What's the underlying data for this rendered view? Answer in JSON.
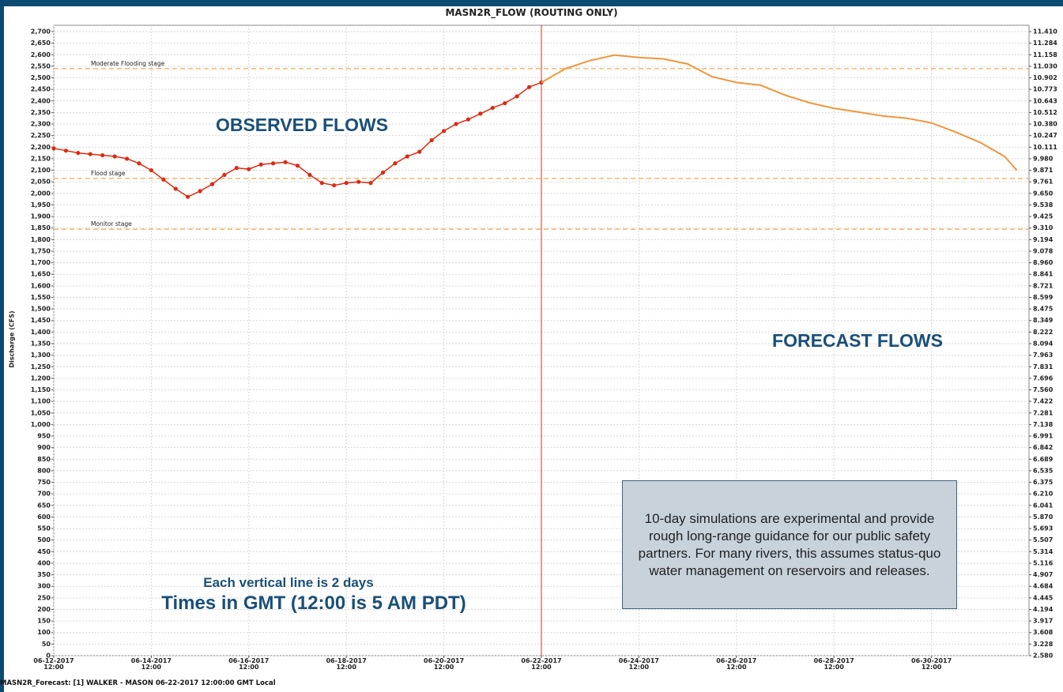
{
  "chart_data": {
    "type": "line",
    "title": "MASN2R_FLOW (ROUTING ONLY)",
    "y_label": "Discharge (CFS)",
    "footer": "MASN2R_Forecast: [1] WALKER - MASON 06-22-2017 12:00:00 GMT Local",
    "xlim": [
      "2017-06-12T12:00",
      "2017-07-02T12:00"
    ],
    "xticks": [
      {
        "value": "2017-06-12T12:00",
        "label": "06-12-2017\n12:00"
      },
      {
        "value": "2017-06-14T12:00",
        "label": "06-14-2017\n12:00"
      },
      {
        "value": "2017-06-16T12:00",
        "label": "06-16-2017\n12:00"
      },
      {
        "value": "2017-06-18T12:00",
        "label": "06-18-2017\n12:00"
      },
      {
        "value": "2017-06-20T12:00",
        "label": "06-20-2017\n12:00"
      },
      {
        "value": "2017-06-22T12:00",
        "label": "06-22-2017\n12:00"
      },
      {
        "value": "2017-06-24T12:00",
        "label": "06-24-2017\n12:00"
      },
      {
        "value": "2017-06-26T12:00",
        "label": "06-26-2017\n12:00"
      },
      {
        "value": "2017-06-28T12:00",
        "label": "06-28-2017\n12:00"
      },
      {
        "value": "2017-06-30T12:00",
        "label": "06-30-2017\n12:00"
      }
    ],
    "ylim": [
      0,
      2700
    ],
    "yticks": [
      0,
      50,
      100,
      150,
      200,
      250,
      300,
      350,
      400,
      450,
      500,
      550,
      600,
      650,
      700,
      750,
      800,
      850,
      900,
      950,
      {
        "value": 1000,
        "label": "1,000"
      },
      {
        "value": 1050,
        "label": "1,050"
      },
      {
        "value": 1100,
        "label": "1,100"
      },
      {
        "value": 1150,
        "label": "1,150"
      },
      {
        "value": 1200,
        "label": "1,200"
      },
      {
        "value": 1250,
        "label": "1,250"
      },
      {
        "value": 1300,
        "label": "1,300"
      },
      {
        "value": 1350,
        "label": "1,350"
      },
      {
        "value": 1400,
        "label": "1,400"
      },
      {
        "value": 1450,
        "label": "1,450"
      },
      {
        "value": 1500,
        "label": "1,500"
      },
      {
        "value": 1550,
        "label": "1,550"
      },
      {
        "value": 1600,
        "label": "1,600"
      },
      {
        "value": 1650,
        "label": "1,650"
      },
      {
        "value": 1700,
        "label": "1,700"
      },
      {
        "value": 1750,
        "label": "1,750"
      },
      {
        "value": 1800,
        "label": "1,800"
      },
      {
        "value": 1850,
        "label": "1,850"
      },
      {
        "value": 1900,
        "label": "1,900"
      },
      {
        "value": 1950,
        "label": "1,950"
      },
      {
        "value": 2000,
        "label": "2,000"
      },
      {
        "value": 2050,
        "label": "2,050"
      },
      {
        "value": 2100,
        "label": "2,100"
      },
      {
        "value": 2150,
        "label": "2,150"
      },
      {
        "value": 2200,
        "label": "2,200"
      },
      {
        "value": 2250,
        "label": "2,250"
      },
      {
        "value": 2300,
        "label": "2,300"
      },
      {
        "value": 2350,
        "label": "2,350"
      },
      {
        "value": 2400,
        "label": "2,400"
      },
      {
        "value": 2450,
        "label": "2,450"
      },
      {
        "value": 2500,
        "label": "2,500"
      },
      {
        "value": 2550,
        "label": "2,550"
      },
      {
        "value": 2600,
        "label": "2,600"
      },
      {
        "value": 2650,
        "label": "2,650"
      },
      {
        "value": 2700,
        "label": "2,700"
      }
    ],
    "stage_labels": [
      "2.580",
      "3.228",
      "3.608",
      "3.917",
      "4.194",
      "4.445",
      "4.684",
      "4.907",
      "5.116",
      "5.314",
      "5.507",
      "5.693",
      "5.870",
      "6.041",
      "6.210",
      "6.375",
      "6.535",
      "6.689",
      "6.842",
      "6.991",
      "7.138",
      "7.281",
      "7.422",
      "7.560",
      "7.696",
      "7.831",
      "7.963",
      "8.094",
      "8.222",
      "8.349",
      "8.475",
      "8.599",
      "8.721",
      "8.841",
      "8.960",
      "9.078",
      "9.194",
      "9.310",
      "9.425",
      "9.538",
      "9.650",
      "9.761",
      "9.871",
      "9.980",
      "10.111",
      "10.247",
      "10.380",
      "10.512",
      "10.643",
      "10.773",
      "10.902",
      "11.030",
      "11.158",
      "11.284",
      "11.410"
    ],
    "grid": true,
    "thresholds": [
      {
        "label": "Moderate Flooding stage",
        "value": 2540
      },
      {
        "label": "Flood stage",
        "value": 2065
      },
      {
        "label": "Monitor stage",
        "value": 1845
      }
    ],
    "threshold_color": "#f0b060",
    "forecast_start": "2017-06-22T12:00",
    "forecast_start_color": "#d43020",
    "series": [
      {
        "color": "#dd2a12",
        "marker": "dot",
        "x": [
          "2017-06-12T12:00",
          "2017-06-12T18:00",
          "2017-06-13T00:00",
          "2017-06-13T06:00",
          "2017-06-13T12:00",
          "2017-06-13T18:00",
          "2017-06-14T00:00",
          "2017-06-14T06:00",
          "2017-06-14T12:00",
          "2017-06-14T18:00",
          "2017-06-15T00:00",
          "2017-06-15T06:00",
          "2017-06-15T12:00",
          "2017-06-15T18:00",
          "2017-06-16T00:00",
          "2017-06-16T06:00",
          "2017-06-16T12:00",
          "2017-06-16T18:00",
          "2017-06-17T00:00",
          "2017-06-17T06:00",
          "2017-06-17T12:00",
          "2017-06-17T18:00",
          "2017-06-18T00:00",
          "2017-06-18T06:00",
          "2017-06-18T12:00",
          "2017-06-18T18:00",
          "2017-06-19T00:00",
          "2017-06-19T06:00",
          "2017-06-19T12:00",
          "2017-06-19T18:00",
          "2017-06-20T00:00",
          "2017-06-20T06:00",
          "2017-06-20T12:00",
          "2017-06-20T18:00",
          "2017-06-21T00:00",
          "2017-06-21T06:00",
          "2017-06-21T12:00",
          "2017-06-21T18:00",
          "2017-06-22T00:00",
          "2017-06-22T06:00",
          "2017-06-22T12:00"
        ],
        "values": [
          2195,
          2185,
          2175,
          2170,
          2165,
          2160,
          2150,
          2130,
          2100,
          2060,
          2020,
          1985,
          2010,
          2040,
          2080,
          2110,
          2105,
          2125,
          2130,
          2135,
          2120,
          2080,
          2045,
          2035,
          2045,
          2050,
          2045,
          2090,
          2130,
          2160,
          2180,
          2230,
          2270,
          2300,
          2320,
          2345,
          2370,
          2390,
          2420,
          2460,
          2480
        ]
      },
      {
        "color": "#f0963c",
        "marker": "line",
        "x": [
          "2017-06-22T12:00",
          "2017-06-23T00:00",
          "2017-06-23T12:00",
          "2017-06-24T00:00",
          "2017-06-24T12:00",
          "2017-06-25T00:00",
          "2017-06-25T12:00",
          "2017-06-26T00:00",
          "2017-06-26T12:00",
          "2017-06-27T00:00",
          "2017-06-27T12:00",
          "2017-06-28T00:00",
          "2017-06-28T12:00",
          "2017-06-29T00:00",
          "2017-06-29T12:00",
          "2017-06-30T00:00",
          "2017-06-30T12:00",
          "2017-07-01T00:00",
          "2017-07-01T12:00",
          "2017-07-02T00:00",
          "2017-07-02T06:00"
        ],
        "values": [
          2480,
          2540,
          2575,
          2598,
          2588,
          2582,
          2560,
          2505,
          2480,
          2468,
          2425,
          2392,
          2368,
          2352,
          2335,
          2325,
          2305,
          2265,
          2220,
          2160,
          2100
        ]
      }
    ],
    "annotations": [
      {
        "text": "OBSERVED FLOWS"
      },
      {
        "text": "FORECAST FLOWS"
      },
      {
        "text": "Each vertical line is 2 days"
      },
      {
        "text": "Times in GMT (12:00 is 5 AM PDT)"
      }
    ],
    "note": "10-day simulations are experimental and provide rough long-range guidance for our public safety partners. For many rivers, this assumes status-quo water management on reservoirs and releases."
  }
}
